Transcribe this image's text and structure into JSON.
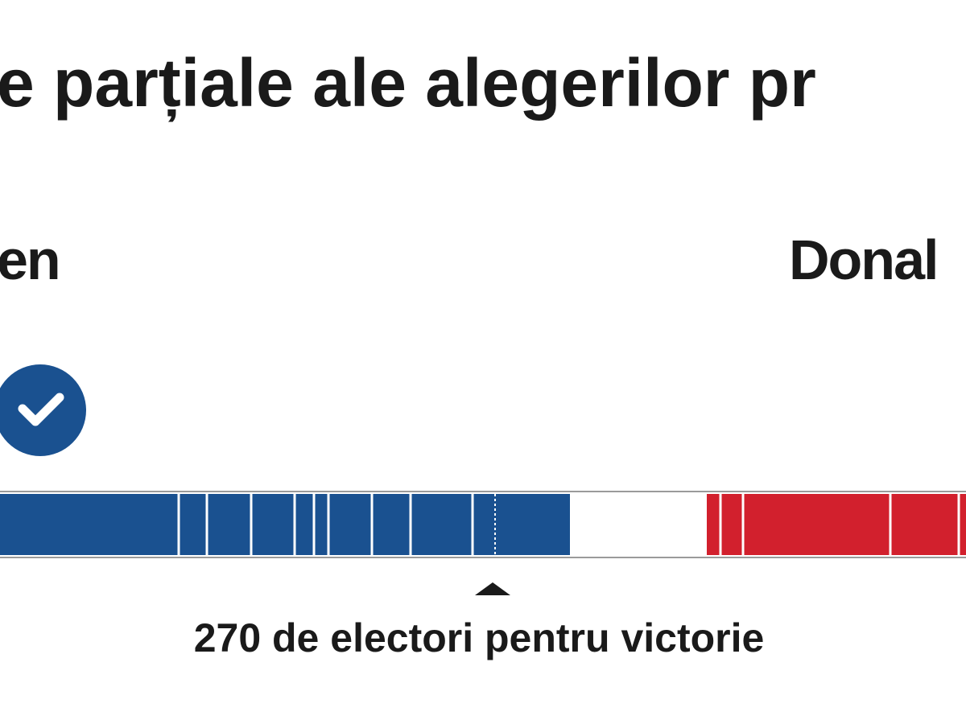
{
  "header": {
    "title": "e parțiale ale alegerilor pr"
  },
  "candidates": {
    "left": "en",
    "right": "Donal"
  },
  "threshold": {
    "label": "270 de electori pentru victorie"
  }
}
